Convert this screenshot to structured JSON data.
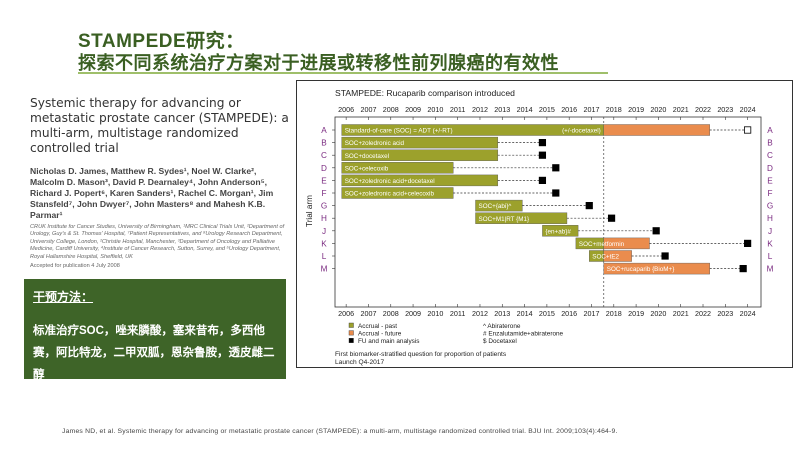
{
  "page": {
    "title_line1": "STAMPEDE研究：",
    "title_line2": "探索不同系统治疗方案对于进展或转移性前列腺癌的有效性",
    "citation": "James ND, et al. Systemic therapy for advancing or metastatic prostate cancer (STAMPEDE): a multi-arm, multistage randomized controlled trial. BJU Int. 2009;103(4):464-9."
  },
  "paper": {
    "title": "Systemic therapy for advancing or metastatic prostate cancer (STAMPEDE): a multi-arm, multistage randomized controlled trial",
    "authors": "Nicholas D. James, Matthew R. Sydes¹, Noel W. Clarke², Malcolm D. Mason³, David P. Dearnaley⁴, John Anderson⁵, Richard J. Popert⁶, Karen Sanders¹, Rachel C. Morgan¹, Jim Stansfeld⁷, John Dwyer⁷, John Masters⁸ and Mahesh K.B. Parmar¹",
    "affiliations": "CRUK Institute for Cancer Studies, University of Birmingham, ¹MRC Clinical Trials Unit, ²Department of Urology, Guy's & St. Thomas' Hospital, ⁷Patient Representatives, and ⁸Urology Research Department, University College, London, ²Christie Hospital, Manchester, ³Department of Oncology and Palliative Medicine, Cardiff University, ⁴Institute of Cancer Research, Sutton, Surrey, and ⁵Urology Department, Royal Hallamshire Hospital, Sheffield, UK",
    "accepted": "Accepted for publication 4 July 2008"
  },
  "methods": {
    "title": "干预方法：",
    "body": "标准治疗SOC，唑来膦酸，塞来昔布，多西他赛，阿比特龙，二甲双胍，恩杂鲁胺，透皮雌二醇"
  },
  "chart_data": {
    "type": "timeline",
    "title": "STAMPEDE: Rucaparib comparison introduced",
    "ylabel": "Trial arm",
    "x_years": [
      "2006",
      "2007",
      "2008",
      "2009",
      "2010",
      "2011",
      "2012",
      "2013",
      "2014",
      "2015",
      "2016",
      "2017",
      "2018",
      "2019",
      "2020",
      "2021",
      "2022",
      "2023",
      "2024"
    ],
    "xlim": [
      2005.5,
      2024.6
    ],
    "vline_at": 2017.55,
    "colors": {
      "past": "#9ca12c",
      "future": "#ea8c4d",
      "fu_marker": "#000000",
      "axis_text": "#7a2a80"
    },
    "arms": [
      {
        "id": "A",
        "label": "Standard-of-care (SOC) = ADT (+/-RT)",
        "note": "(+/-docetaxel)",
        "past": [
          2005.8,
          2017.55
        ],
        "future": [
          2017.55,
          2022.3
        ],
        "fu": 2024.0,
        "fu_open": true
      },
      {
        "id": "B",
        "label": "SOC+zoledronic acid",
        "past": [
          2005.8,
          2012.8
        ],
        "fu": 2014.8
      },
      {
        "id": "C",
        "label": "SOC+docetaxel",
        "past": [
          2005.8,
          2012.8
        ],
        "fu": 2014.8
      },
      {
        "id": "D",
        "label": "SOC+celecoxib",
        "past": [
          2005.8,
          2010.8
        ],
        "fu": 2015.4
      },
      {
        "id": "E",
        "label": "SOC+zoledronic acid+docetaxel",
        "past": [
          2005.8,
          2012.8
        ],
        "fu": 2014.8
      },
      {
        "id": "F",
        "label": "SOC+zoledronic acid+celecoxib",
        "past": [
          2005.8,
          2010.8
        ],
        "fu": 2015.4
      },
      {
        "id": "G",
        "label": "SOC+{abi}^",
        "past": [
          2011.8,
          2013.9
        ],
        "fu": 2016.9
      },
      {
        "id": "H",
        "label": "SOC+M1|RT {M1}",
        "past": [
          2011.8,
          2015.9
        ],
        "fu": 2017.9
      },
      {
        "id": "J",
        "label": "{en+ab}#",
        "past": [
          2014.8,
          2016.4
        ],
        "fu": 2019.9
      },
      {
        "id": "K",
        "label": "SOC+metformin",
        "past": [
          2016.3,
          2017.55
        ],
        "future": [
          2017.55,
          2019.6
        ],
        "fu": 2024.0
      },
      {
        "id": "L",
        "label": "SOC+tE2",
        "past": [
          2016.9,
          2017.55
        ],
        "future": [
          2017.55,
          2018.8
        ],
        "fu": 2020.3
      },
      {
        "id": "M",
        "label": "SOC+rucaparib {BioM+}",
        "future": [
          2017.55,
          2022.3
        ],
        "fu": 2023.8
      }
    ],
    "legend": {
      "left": [
        "Accrual - past",
        "Accrual - future",
        "FU and main analysis"
      ],
      "right": [
        "^ Abiraterone",
        "# Enzalutamide+abiraterone",
        "$ Docetaxel"
      ]
    },
    "footnote": [
      "First biomarker-stratified question for proportion of patients",
      "Launch Q4-2017"
    ]
  }
}
